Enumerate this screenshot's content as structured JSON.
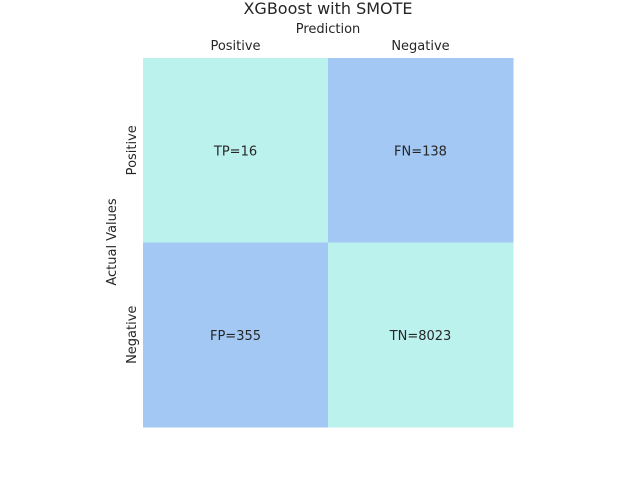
{
  "chart_data": {
    "type": "heatmap",
    "title": "XGBoost with SMOTE",
    "xlabel": "Prediction",
    "ylabel": "Actual Values",
    "x_categories": [
      "Positive",
      "Negative"
    ],
    "y_categories": [
      "Positive",
      "Negative"
    ],
    "cells": [
      [
        {
          "label": "TP=16",
          "value": 16
        },
        {
          "label": "FN=138",
          "value": 138
        }
      ],
      [
        {
          "label": "FP=355",
          "value": 355
        },
        {
          "label": "TN=8023",
          "value": 8023
        }
      ]
    ],
    "colors": {
      "diagonal": "#bcf2ee",
      "off_diagonal": "#a3c8f4"
    },
    "x_axis_position": "top",
    "grid": false,
    "legend": "none"
  }
}
